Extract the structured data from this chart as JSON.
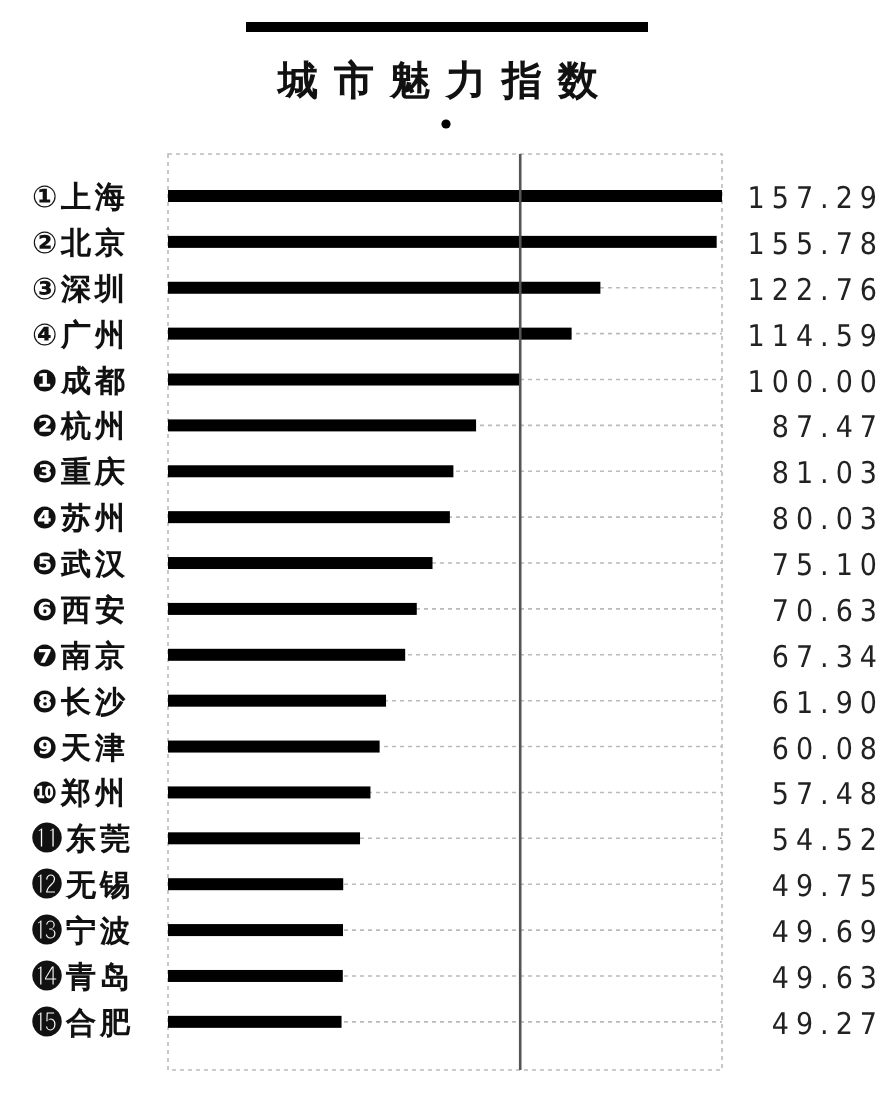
{
  "chart_data": {
    "type": "bar",
    "orientation": "horizontal",
    "title": "城市魅力指数",
    "categories": [
      "①上海",
      "②北京",
      "③深圳",
      "④广州",
      "❶成都",
      "❷杭州",
      "❸重庆",
      "❹苏州",
      "❺武汉",
      "❻西安",
      "❼南京",
      "❽长沙",
      "❾天津",
      "❿郑州",
      "⓫东莞",
      "⓬无锡",
      "⓭宁波",
      "⓮青岛",
      "⓯合肥"
    ],
    "values": [
      157.29,
      155.78,
      122.76,
      114.59,
      100.0,
      87.47,
      81.03,
      80.03,
      75.1,
      70.63,
      67.34,
      61.9,
      60.08,
      57.48,
      54.52,
      49.75,
      49.69,
      49.63,
      49.27
    ],
    "value_labels": [
      "157.29",
      "155.78",
      "122.76",
      "114.59",
      "100.00",
      "87.47",
      "81.03",
      "80.03",
      "75.10",
      "70.63",
      "67.34",
      "61.90",
      "60.08",
      "57.48",
      "54.52",
      "49.75",
      "49.69",
      "49.63",
      "49.27"
    ],
    "color": "#000000",
    "grid": "y",
    "ref_lines": [
      {
        "axis": "x",
        "value": 100,
        "color": "#555555"
      }
    ]
  }
}
